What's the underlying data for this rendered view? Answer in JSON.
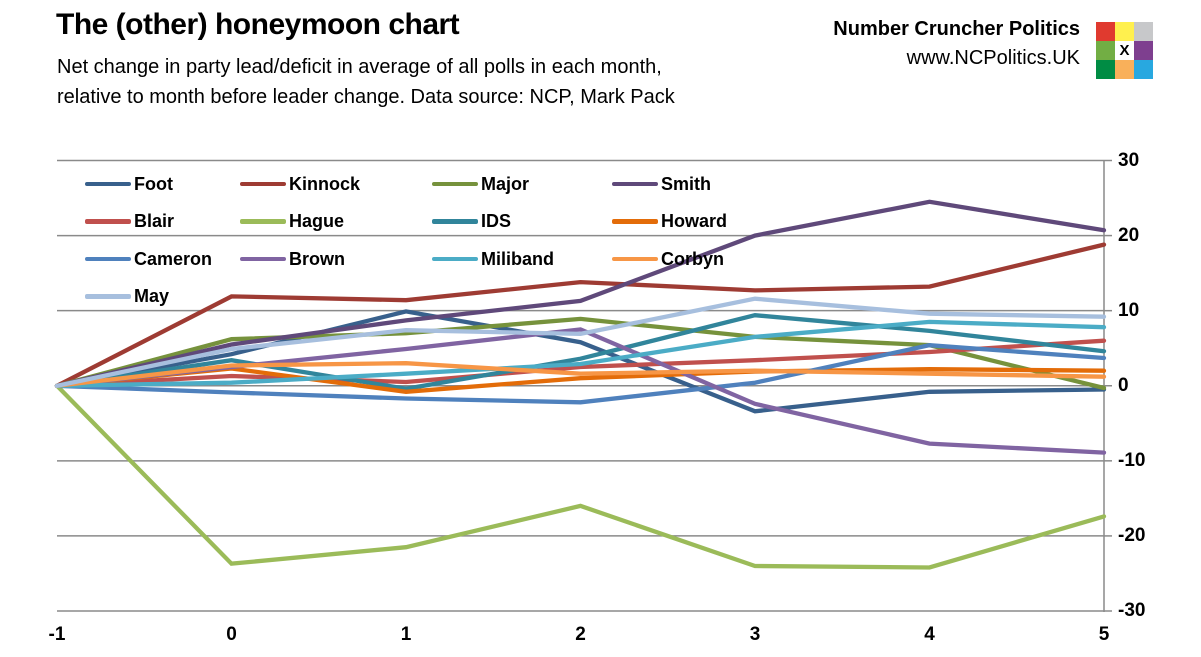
{
  "header": {
    "title": "The (other) honeymoon chart",
    "subtitle_line1": "Net change in party lead/deficit in average of all polls in each month,",
    "subtitle_line2": "relative to month before leader change. Data source: NCP, Mark Pack",
    "brand_name": "Number Cruncher Politics",
    "brand_url": "www.NCPolitics.UK"
  },
  "logo": {
    "description": "ncp-logo-3x3-grid",
    "cells": [
      [
        "#E03A2F",
        "#FFF04E",
        "#C7C8CA"
      ],
      [
        "#72AE44",
        "X",
        "#7E3F8F"
      ],
      [
        "#008C44",
        "#F9B05A",
        "#28A8E0"
      ]
    ],
    "x_cell_bg": "#FFFFFF"
  },
  "chart_data": {
    "type": "line",
    "x": [
      -1,
      0,
      1,
      2,
      3,
      4,
      5
    ],
    "xlim": [
      -1,
      5
    ],
    "ylim": [
      -30,
      30
    ],
    "y_ticks": [
      30,
      20,
      10,
      0,
      -10,
      -20,
      -30
    ],
    "x_ticks": [
      -1,
      0,
      1,
      2,
      3,
      4,
      5
    ],
    "grid": "horizontal-only",
    "axis_side": "right",
    "gridline_color": "#8A8A8A",
    "legend_position": "top-left-inside",
    "legend_rows": [
      [
        "Foot",
        "Kinnock",
        "Major",
        "Smith"
      ],
      [
        "Blair",
        "Hague",
        "IDS",
        "Howard"
      ],
      [
        "Cameron",
        "Brown",
        "Miliband",
        "Corbyn"
      ],
      [
        "May"
      ]
    ],
    "series": [
      {
        "name": "Foot",
        "color": "#38608C",
        "values": [
          0,
          4.2,
          9.9,
          5.8,
          -3.4,
          -0.8,
          -0.5
        ]
      },
      {
        "name": "Kinnock",
        "color": "#9E3B33",
        "values": [
          0,
          11.9,
          11.4,
          13.8,
          12.7,
          13.2,
          18.8
        ]
      },
      {
        "name": "Major",
        "color": "#76923C",
        "values": [
          0,
          6.2,
          7.0,
          8.9,
          6.5,
          5.4,
          -0.3
        ]
      },
      {
        "name": "Smith",
        "color": "#5F497A",
        "values": [
          0,
          5.5,
          8.7,
          11.3,
          20.0,
          24.5,
          20.7
        ]
      },
      {
        "name": "Blair",
        "color": "#C0504D",
        "values": [
          0,
          1.3,
          0.5,
          2.5,
          3.4,
          4.5,
          6.0
        ]
      },
      {
        "name": "Hague",
        "color": "#9BBB59",
        "values": [
          0,
          -23.7,
          -21.5,
          -16.0,
          -24.0,
          -24.2,
          -17.4
        ]
      },
      {
        "name": "IDS",
        "color": "#31859B",
        "values": [
          0,
          3.4,
          -0.4,
          3.6,
          9.4,
          7.3,
          4.6
        ]
      },
      {
        "name": "Howard",
        "color": "#E36C09",
        "values": [
          0,
          2.3,
          -0.8,
          1.0,
          1.9,
          2.2,
          2.0
        ]
      },
      {
        "name": "Cameron",
        "color": "#4F81BD",
        "values": [
          0,
          -0.9,
          -1.7,
          -2.2,
          0.4,
          5.4,
          3.7
        ]
      },
      {
        "name": "Brown",
        "color": "#8064A2",
        "values": [
          0,
          2.5,
          4.9,
          7.5,
          -2.4,
          -7.7,
          -8.9
        ]
      },
      {
        "name": "Miliband",
        "color": "#4BACC6",
        "values": [
          0,
          0.4,
          1.6,
          2.9,
          6.5,
          8.5,
          7.8
        ]
      },
      {
        "name": "Corbyn",
        "color": "#F79646",
        "values": [
          0,
          2.7,
          3.0,
          1.6,
          2.0,
          1.6,
          1.2
        ]
      },
      {
        "name": "May",
        "color": "#A7BFDE",
        "values": [
          0,
          4.9,
          7.4,
          6.9,
          11.6,
          9.6,
          9.2
        ]
      }
    ]
  }
}
